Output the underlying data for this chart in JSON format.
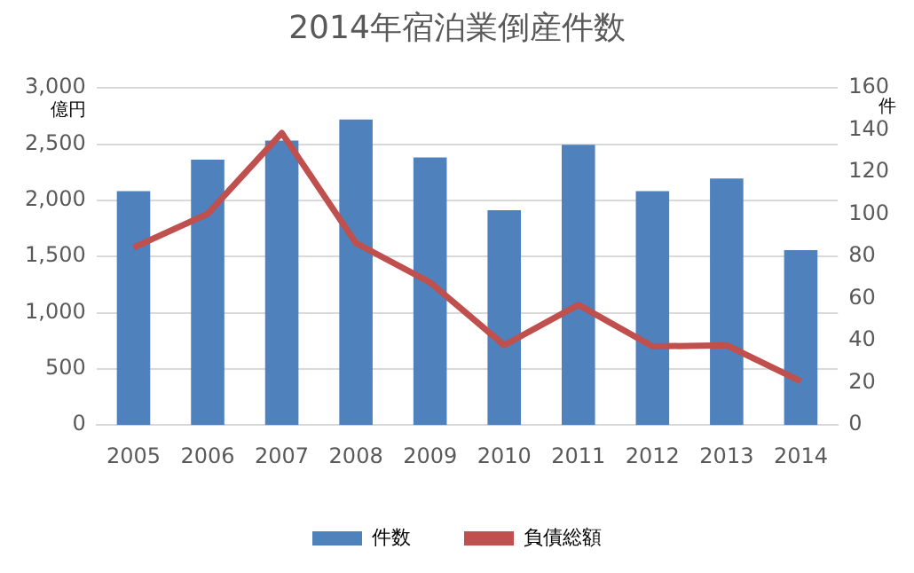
{
  "chart_data": {
    "type": "bar",
    "title": "2014年宿泊業倒産件数",
    "ylabel": "億円",
    "y2label": "件",
    "categories": [
      "2005",
      "2006",
      "2007",
      "2008",
      "2009",
      "2010",
      "2011",
      "2012",
      "2013",
      "2014"
    ],
    "series": [
      {
        "name": "件数",
        "axis": "y2",
        "color": "#4f81bd",
        "values": [
          111,
          126,
          135,
          145,
          127,
          102,
          133,
          111,
          117,
          83
        ]
      },
      {
        "name": "負債総額",
        "type": "line",
        "axis": "y",
        "color": "#c0504d",
        "values": [
          1580,
          1880,
          2600,
          1620,
          1270,
          710,
          1070,
          700,
          710,
          390
        ]
      }
    ],
    "ylim": [
      0,
      3000
    ],
    "yticks": [
      0,
      500,
      {
        "value": 1000,
        "label": "1,000"
      },
      {
        "value": 1500,
        "label": "1,500"
      },
      {
        "value": 2000,
        "label": "2,000"
      },
      {
        "value": 2500,
        "label": "2,500"
      },
      {
        "value": 3000,
        "label": "3,000"
      }
    ],
    "y2lim": [
      0,
      160
    ],
    "y2ticks": [
      0,
      20,
      40,
      60,
      80,
      100,
      120,
      140,
      160
    ],
    "grid": "y",
    "legend": "bottom",
    "marker": "none",
    "line_style": "solid"
  }
}
